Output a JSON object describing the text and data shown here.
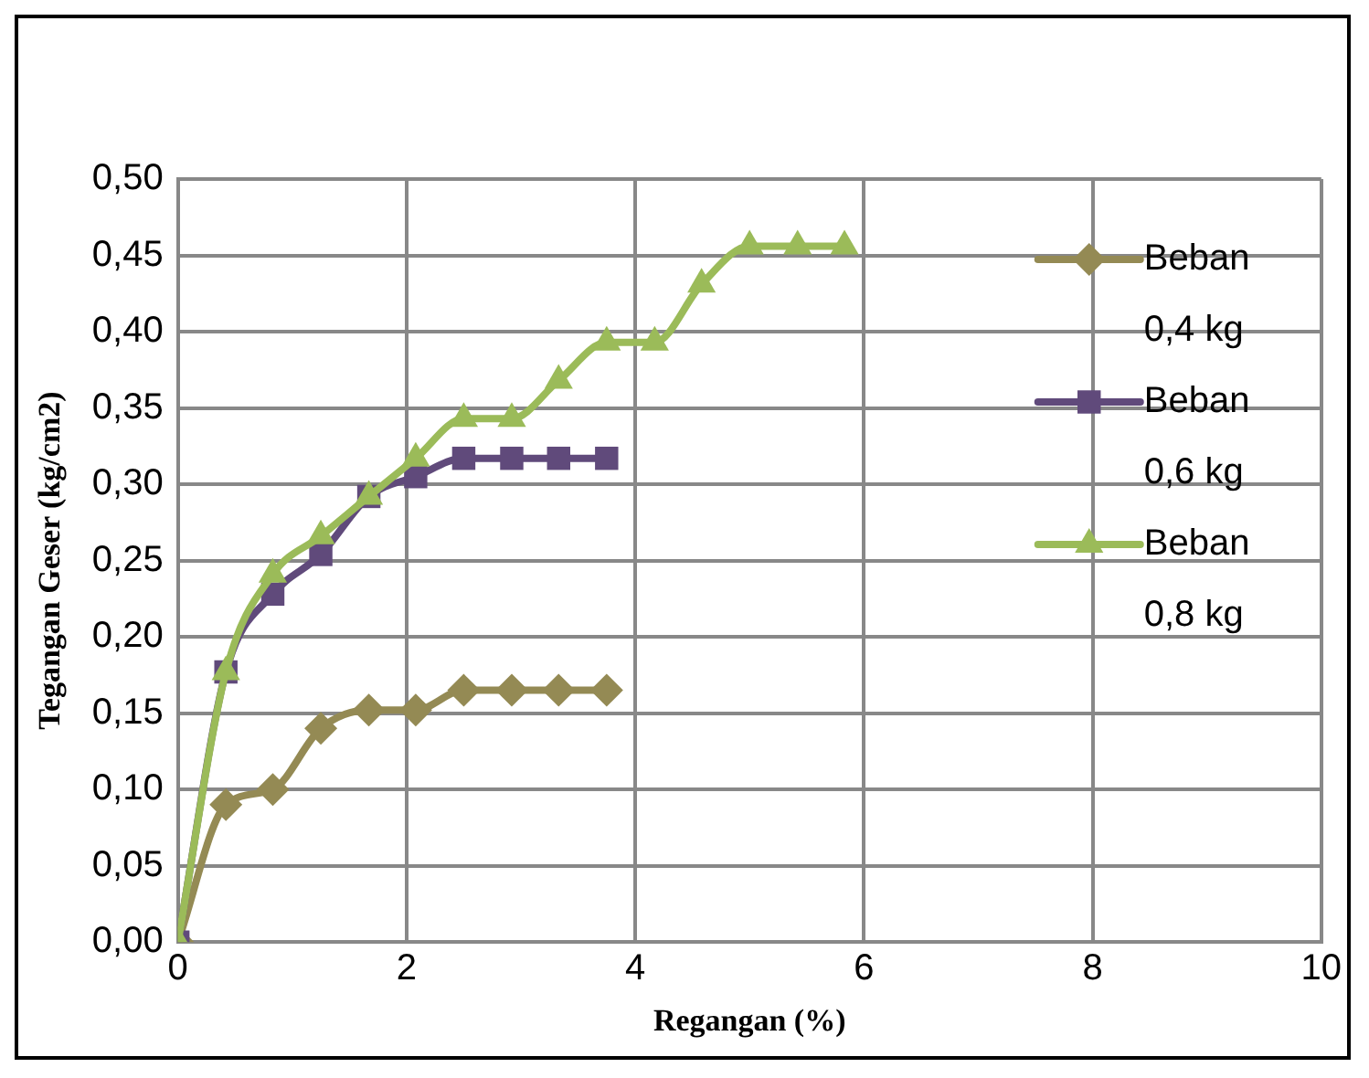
{
  "chart_data": {
    "type": "line",
    "xlabel": "Regangan (%)",
    "ylabel": "Tegangan Geser (kg/cm2)",
    "x": [
      0,
      0.42,
      0.83,
      1.25,
      1.67,
      2.08,
      2.5,
      2.92,
      3.33,
      3.75,
      4.17,
      4.58,
      5.0,
      5.42,
      5.83
    ],
    "series": [
      {
        "name": "Beban 0,4 kg",
        "color": "#948a54",
        "marker": "diamond",
        "values": [
          0,
          0.09,
          0.1,
          0.14,
          0.152,
          0.152,
          0.165,
          0.165,
          0.165,
          0.165,
          null,
          null,
          null,
          null,
          null
        ]
      },
      {
        "name": "Beban 0,6 kg",
        "color": "#604a7b",
        "marker": "square",
        "values": [
          0,
          0.177,
          0.228,
          0.254,
          0.292,
          0.305,
          0.317,
          0.317,
          0.317,
          0.317,
          null,
          null,
          null,
          null,
          null
        ]
      },
      {
        "name": "Beban 0,8 kg",
        "color": "#9bbb59",
        "marker": "triangle",
        "values": [
          0,
          0.177,
          0.241,
          0.266,
          0.292,
          0.317,
          0.343,
          0.343,
          0.368,
          0.393,
          0.393,
          0.431,
          0.456,
          0.456,
          0.456
        ]
      }
    ],
    "xlim": [
      0,
      10
    ],
    "xticks": [
      0,
      2,
      4,
      6,
      8,
      10
    ],
    "ylim": [
      0,
      0.5
    ],
    "yticks": [
      {
        "value": 0,
        "label": "0,00"
      },
      {
        "value": 0.05,
        "label": "0,05"
      },
      {
        "value": 0.1,
        "label": "0,10"
      },
      {
        "value": 0.15,
        "label": "0,15"
      },
      {
        "value": 0.2,
        "label": "0,20"
      },
      {
        "value": 0.25,
        "label": "0,25"
      },
      {
        "value": 0.3,
        "label": "0,30"
      },
      {
        "value": 0.35,
        "label": "0,35"
      },
      {
        "value": 0.4,
        "label": "0,40"
      },
      {
        "value": 0.45,
        "label": "0,45"
      },
      {
        "value": 0.5,
        "label": "0,50"
      }
    ],
    "grid": true,
    "legend": "top right",
    "line_style": "solid"
  }
}
